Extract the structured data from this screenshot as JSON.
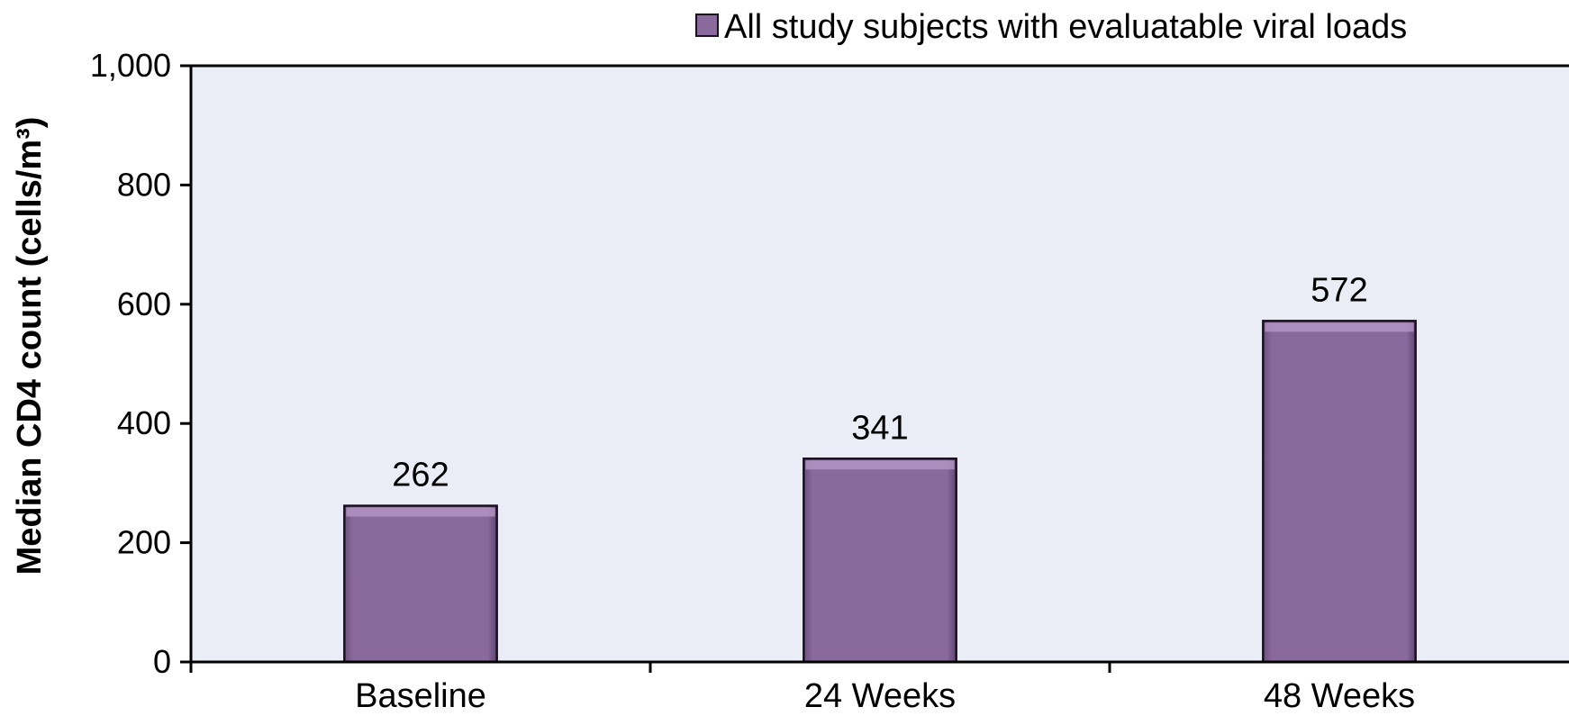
{
  "chart_data": {
    "type": "bar",
    "categories": [
      "Baseline",
      "24 Weeks",
      "48 Weeks"
    ],
    "series": [
      {
        "name": "All study subjects with evaluatable viral loads",
        "values": [
          262,
          341,
          572
        ],
        "data_labels": [
          "262",
          "341",
          "572"
        ]
      }
    ],
    "title": "",
    "xlabel": "",
    "ylabel": "Median CD4 count (cells/m³)",
    "ylim": [
      0,
      1000
    ],
    "yticks": [
      0,
      200,
      400,
      600,
      800,
      1000
    ],
    "ytick_labels": [
      "0",
      "200",
      "400",
      "600",
      "800",
      "1,000"
    ],
    "grid": false,
    "legend": "top-right",
    "colors": {
      "bar": "#8a6a9c",
      "bar_edge": "#1a0f1f",
      "plot_bg": "#eaedf5",
      "axis": "#000000"
    }
  }
}
